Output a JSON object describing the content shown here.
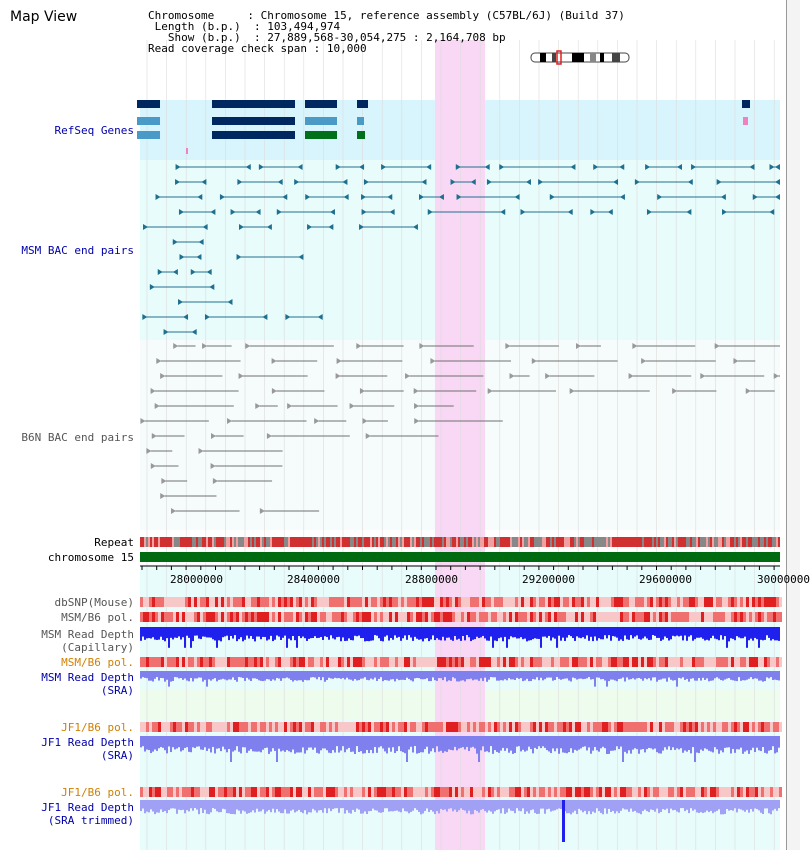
{
  "page": {
    "title": "Map View"
  },
  "info": {
    "chromosome_key": "Chromosome",
    "chromosome_val": "Chromosome 15, reference assembly (C57BL/6J) (Build 37)",
    "length_key": "Length (b.p.)",
    "length_val": "103,494,974",
    "show_key": "Show (b.p.)",
    "show_val": "27,889,568-30,054,275 : 2,164,708 bp",
    "coverage_key": "Read coverage check span",
    "coverage_val": "10,000"
  },
  "tracks": {
    "refseq": "RefSeq Genes",
    "msm_bac": "MSM BAC end pairs",
    "b6n_bac": "B6N BAC end pairs",
    "repeat": "Repeat",
    "chromosome": "chromosome 15",
    "dbsnp": "dbSNP(Mouse)",
    "msm_b6_pol_1": "MSM/B6 pol.",
    "msm_read_depth_cap_1": "MSM Read Depth",
    "msm_read_depth_cap_2": "(Capillary)",
    "msm_b6_pol_2": "MSM/B6 pol.",
    "msm_read_depth_sra_1": "MSM Read Depth",
    "msm_read_depth_sra_2": "(SRA)",
    "jf1_b6_pol_1": "JF1/B6 pol.",
    "jf1_read_depth_sra_1": "JF1 Read Depth",
    "jf1_read_depth_sra_2": "(SRA)",
    "jf1_b6_pol_2": "JF1/B6 pol.",
    "jf1_read_depth_trim_1": "JF1 Read Depth",
    "jf1_read_depth_trim_2": "(SRA trimmed)"
  },
  "axis": {
    "ticks": [
      "28000000",
      "28400000",
      "28800000",
      "29200000",
      "29600000",
      "30000000"
    ]
  },
  "colors": {
    "refseq_bg": "#d8f4fc",
    "bac_bg": "#e8fcfc",
    "highlight": "#f8d8f4",
    "msm_bac": "#1f6f8f",
    "b6n_bac": "#707070",
    "gene_dark": "#002860",
    "gene_mid": "#4a9ac8",
    "gene_green": "#00701a",
    "chrom_green": "#006a10",
    "depth_dark": "#2020ee",
    "depth_light": "#7f7fee",
    "pol_red": "#f07070"
  }
}
